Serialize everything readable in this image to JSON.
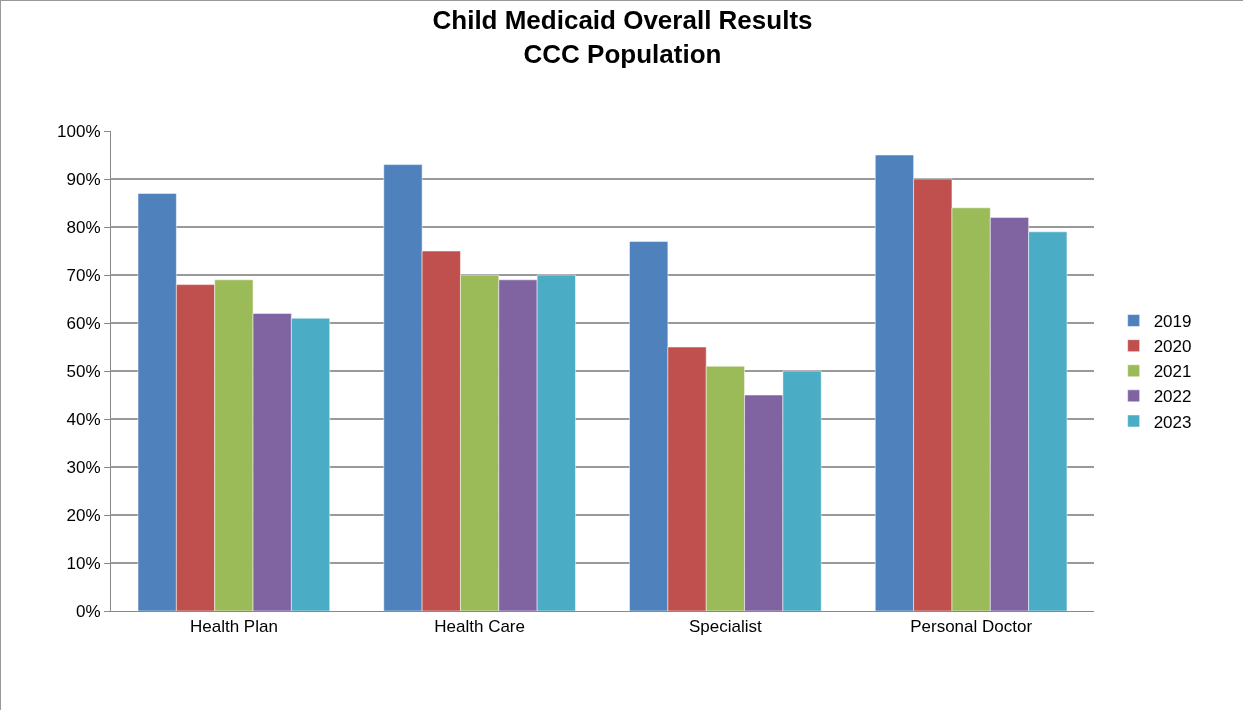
{
  "chart_data": {
    "type": "bar",
    "title": "Child Medicaid Overall Results\nCCC Population",
    "categories": [
      "Health Plan",
      "Health Care",
      "Specialist",
      "Personal Doctor"
    ],
    "series": [
      {
        "name": "2019",
        "color": "#4f81bd",
        "values": [
          87,
          93,
          77,
          95
        ]
      },
      {
        "name": "2020",
        "color": "#c0504d",
        "values": [
          68,
          75,
          55,
          90
        ]
      },
      {
        "name": "2021",
        "color": "#9bbb59",
        "values": [
          69,
          70,
          51,
          84
        ]
      },
      {
        "name": "2022",
        "color": "#8064a2",
        "values": [
          62,
          69,
          45,
          82
        ]
      },
      {
        "name": "2023",
        "color": "#4bacc6",
        "values": [
          61,
          70,
          50,
          79
        ]
      }
    ],
    "ylim": [
      0,
      100
    ],
    "yticks": [
      {
        "value": 0,
        "label": "0%"
      },
      {
        "value": 10,
        "label": "10%"
      },
      {
        "value": 20,
        "label": "20%"
      },
      {
        "value": 30,
        "label": "30%"
      },
      {
        "value": 40,
        "label": "40%"
      },
      {
        "value": 50,
        "label": "50%"
      },
      {
        "value": 60,
        "label": "60%"
      },
      {
        "value": 70,
        "label": "70%"
      },
      {
        "value": 80,
        "label": "80%"
      },
      {
        "value": 90,
        "label": "90%"
      },
      {
        "value": 100,
        "label": "100%"
      }
    ],
    "grid": "y",
    "legend": "right"
  }
}
